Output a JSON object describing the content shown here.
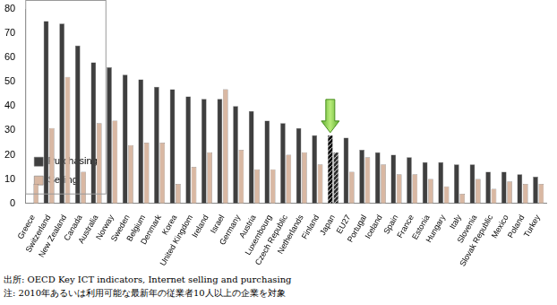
{
  "chart_data": {
    "type": "bar",
    "categories": [
      "Greece",
      "Switzerland",
      "New Zealand",
      "Canada",
      "Australia",
      "Norway",
      "Sweden",
      "Belgium",
      "Denmark",
      "Korea",
      "United Kingdom",
      "Ireland",
      "Israel",
      "Germany",
      "Austria",
      "Luxembourg",
      "Czech Republic",
      "Netherlands",
      "Finland",
      "Japan",
      "EU27",
      "Portugal",
      "Iceland",
      "Spain",
      "France",
      "Estonia",
      "Hungary",
      "Italy",
      "Slovenia",
      "Slovak Republic",
      "Mexico",
      "Poland",
      "Turkey"
    ],
    "series": [
      {
        "name": "Purchasing",
        "color": "#3f3f3f",
        "colors": [
          "#3f3f3f",
          "#3f3f3f",
          "#3f3f3f",
          "#3f3f3f",
          "#3f3f3f",
          "#3f3f3f",
          "#3f3f3f",
          "#3f3f3f",
          "#3f3f3f",
          "#3f3f3f",
          "#3f3f3f",
          "#3f3f3f",
          "#3f3f3f",
          "#3f3f3f",
          "#3f3f3f",
          "#3f3f3f",
          "#3f3f3f",
          "#3f3f3f",
          "#3f3f3f",
          "#000000",
          "#3f3f3f",
          "#3f3f3f",
          "#3f3f3f",
          "#3f3f3f",
          "#3f3f3f",
          "#3f3f3f",
          "#3f3f3f",
          "#3f3f3f",
          "#3f3f3f",
          "#3f3f3f",
          "#3f3f3f",
          "#3f3f3f",
          "#3f3f3f"
        ],
        "values": [
          null,
          75,
          74,
          65,
          58,
          56,
          53,
          51,
          48,
          47,
          44,
          43,
          43,
          40,
          38,
          34,
          33,
          31,
          28,
          28,
          27,
          22,
          21,
          20,
          19,
          17,
          17,
          16,
          16,
          13,
          13,
          12,
          11
        ]
      },
      {
        "name": "Selling",
        "color": "#d9b8a3",
        "colors": [
          "#d9b8a3",
          "#d9b8a3",
          "#d9b8a3",
          "#d9b8a3",
          "#d9b8a3",
          "#d9b8a3",
          "#d9b8a3",
          "#d9b8a3",
          "#d9b8a3",
          "#d9b8a3",
          "#d9b8a3",
          "#d9b8a3",
          "#d9b8a3",
          "#d9b8a3",
          "#d9b8a3",
          "#d9b8a3",
          "#d9b8a3",
          "#d9b8a3",
          "#d9b8a3",
          "#2b2b2b",
          "#d9b8a3",
          "#d9b8a3",
          "#d9b8a3",
          "#d9b8a3",
          "#d9b8a3",
          "#d9b8a3",
          "#d9b8a3",
          "#d9b8a3",
          "#d9b8a3",
          "#d9b8a3",
          "#d9b8a3",
          "#d9b8a3",
          "#d9b8a3"
        ],
        "values": [
          8,
          31,
          52,
          13,
          33,
          34,
          24,
          25,
          25,
          8,
          15,
          21,
          47,
          22,
          14,
          14,
          20,
          21,
          16,
          21,
          13,
          19,
          16,
          12,
          12,
          10,
          7,
          4,
          10,
          6,
          9,
          8,
          8
        ]
      }
    ],
    "ylim": [
      0,
      80
    ],
    "yticks": [
      0,
      10,
      20,
      30,
      40,
      50,
      60,
      70,
      80
    ],
    "grid": false,
    "legend": "upper right",
    "notes": [
      "出所: OECD Key ICT indicators, Internet selling and purchasing",
      "注: 2010年あるいは利用可能な最新年の従業者10人以上の企業を対象"
    ]
  }
}
